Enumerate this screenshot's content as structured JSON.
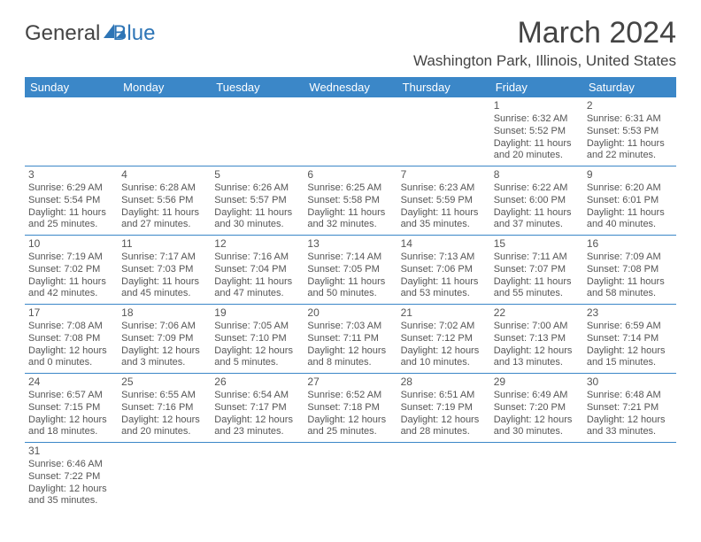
{
  "logo": {
    "text1": "General",
    "text2": "Blue"
  },
  "title": "March 2024",
  "location": "Washington Park, Illinois, United States",
  "colors": {
    "header_bg": "#3b87c8",
    "header_text": "#ffffff",
    "border": "#3b87c8",
    "body_text": "#555555",
    "logo_gray": "#444444",
    "logo_blue": "#2e75b6",
    "background": "#ffffff"
  },
  "table": {
    "columns": [
      "Sunday",
      "Monday",
      "Tuesday",
      "Wednesday",
      "Thursday",
      "Friday",
      "Saturday"
    ],
    "weeks": [
      [
        null,
        null,
        null,
        null,
        null,
        {
          "d": "1",
          "sr": "6:32 AM",
          "ss": "5:52 PM",
          "dl": "11 hours and 20 minutes."
        },
        {
          "d": "2",
          "sr": "6:31 AM",
          "ss": "5:53 PM",
          "dl": "11 hours and 22 minutes."
        }
      ],
      [
        {
          "d": "3",
          "sr": "6:29 AM",
          "ss": "5:54 PM",
          "dl": "11 hours and 25 minutes."
        },
        {
          "d": "4",
          "sr": "6:28 AM",
          "ss": "5:56 PM",
          "dl": "11 hours and 27 minutes."
        },
        {
          "d": "5",
          "sr": "6:26 AM",
          "ss": "5:57 PM",
          "dl": "11 hours and 30 minutes."
        },
        {
          "d": "6",
          "sr": "6:25 AM",
          "ss": "5:58 PM",
          "dl": "11 hours and 32 minutes."
        },
        {
          "d": "7",
          "sr": "6:23 AM",
          "ss": "5:59 PM",
          "dl": "11 hours and 35 minutes."
        },
        {
          "d": "8",
          "sr": "6:22 AM",
          "ss": "6:00 PM",
          "dl": "11 hours and 37 minutes."
        },
        {
          "d": "9",
          "sr": "6:20 AM",
          "ss": "6:01 PM",
          "dl": "11 hours and 40 minutes."
        }
      ],
      [
        {
          "d": "10",
          "sr": "7:19 AM",
          "ss": "7:02 PM",
          "dl": "11 hours and 42 minutes."
        },
        {
          "d": "11",
          "sr": "7:17 AM",
          "ss": "7:03 PM",
          "dl": "11 hours and 45 minutes."
        },
        {
          "d": "12",
          "sr": "7:16 AM",
          "ss": "7:04 PM",
          "dl": "11 hours and 47 minutes."
        },
        {
          "d": "13",
          "sr": "7:14 AM",
          "ss": "7:05 PM",
          "dl": "11 hours and 50 minutes."
        },
        {
          "d": "14",
          "sr": "7:13 AM",
          "ss": "7:06 PM",
          "dl": "11 hours and 53 minutes."
        },
        {
          "d": "15",
          "sr": "7:11 AM",
          "ss": "7:07 PM",
          "dl": "11 hours and 55 minutes."
        },
        {
          "d": "16",
          "sr": "7:09 AM",
          "ss": "7:08 PM",
          "dl": "11 hours and 58 minutes."
        }
      ],
      [
        {
          "d": "17",
          "sr": "7:08 AM",
          "ss": "7:08 PM",
          "dl": "12 hours and 0 minutes."
        },
        {
          "d": "18",
          "sr": "7:06 AM",
          "ss": "7:09 PM",
          "dl": "12 hours and 3 minutes."
        },
        {
          "d": "19",
          "sr": "7:05 AM",
          "ss": "7:10 PM",
          "dl": "12 hours and 5 minutes."
        },
        {
          "d": "20",
          "sr": "7:03 AM",
          "ss": "7:11 PM",
          "dl": "12 hours and 8 minutes."
        },
        {
          "d": "21",
          "sr": "7:02 AM",
          "ss": "7:12 PM",
          "dl": "12 hours and 10 minutes."
        },
        {
          "d": "22",
          "sr": "7:00 AM",
          "ss": "7:13 PM",
          "dl": "12 hours and 13 minutes."
        },
        {
          "d": "23",
          "sr": "6:59 AM",
          "ss": "7:14 PM",
          "dl": "12 hours and 15 minutes."
        }
      ],
      [
        {
          "d": "24",
          "sr": "6:57 AM",
          "ss": "7:15 PM",
          "dl": "12 hours and 18 minutes."
        },
        {
          "d": "25",
          "sr": "6:55 AM",
          "ss": "7:16 PM",
          "dl": "12 hours and 20 minutes."
        },
        {
          "d": "26",
          "sr": "6:54 AM",
          "ss": "7:17 PM",
          "dl": "12 hours and 23 minutes."
        },
        {
          "d": "27",
          "sr": "6:52 AM",
          "ss": "7:18 PM",
          "dl": "12 hours and 25 minutes."
        },
        {
          "d": "28",
          "sr": "6:51 AM",
          "ss": "7:19 PM",
          "dl": "12 hours and 28 minutes."
        },
        {
          "d": "29",
          "sr": "6:49 AM",
          "ss": "7:20 PM",
          "dl": "12 hours and 30 minutes."
        },
        {
          "d": "30",
          "sr": "6:48 AM",
          "ss": "7:21 PM",
          "dl": "12 hours and 33 minutes."
        }
      ],
      [
        {
          "d": "31",
          "sr": "6:46 AM",
          "ss": "7:22 PM",
          "dl": "12 hours and 35 minutes."
        },
        null,
        null,
        null,
        null,
        null,
        null
      ]
    ],
    "labels": {
      "sunrise": "Sunrise:",
      "sunset": "Sunset:",
      "daylight": "Daylight:"
    }
  }
}
